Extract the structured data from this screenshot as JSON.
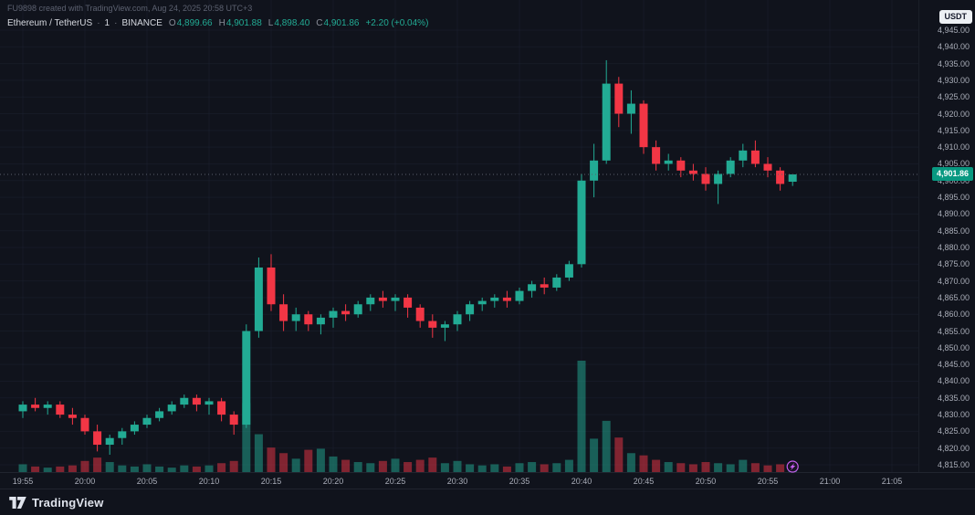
{
  "header": {
    "attribution": "FU9898 created with TradingView.com, Aug 24, 2025 20:58 UTC+3",
    "symbol": "Ethereum / TetherUS",
    "separator": "·",
    "interval": "1",
    "exchange": "BINANCE",
    "ohlc": {
      "o_label": "O",
      "o_value": "4,899.66",
      "h_label": "H",
      "h_value": "4,901.88",
      "l_label": "L",
      "l_value": "4,898.40",
      "c_label": "C",
      "c_value": "4,901.86",
      "change": "+2.20 (+0.04%)"
    }
  },
  "price_axis": {
    "currency": "USDT",
    "last_price": "4,901.86"
  },
  "footer": {
    "brand": "TradingView"
  },
  "chart_data": {
    "type": "candlestick",
    "title": "Ethereum / TetherUS · 1 · BINANCE",
    "x_ticks": [
      "19:55",
      "20:00",
      "20:05",
      "20:10",
      "20:15",
      "20:20",
      "20:25",
      "20:30",
      "20:35",
      "20:40",
      "20:45",
      "20:50",
      "20:55",
      "21:00",
      "21:05"
    ],
    "y_axis": {
      "min": 4815,
      "max": 4945,
      "step": 5
    },
    "y_tick_labels": [
      "4,945.00",
      "4,940.00",
      "4,935.00",
      "4,930.00",
      "4,925.00",
      "4,920.00",
      "4,915.00",
      "4,910.00",
      "4,905.00",
      "4,900.00",
      "4,895.00",
      "4,890.00",
      "4,885.00",
      "4,880.00",
      "4,875.00",
      "4,870.00",
      "4,865.00",
      "4,860.00",
      "4,855.00",
      "4,850.00",
      "4,845.00",
      "4,840.00",
      "4,835.00",
      "4,830.00",
      "4,825.00",
      "4,820.00",
      "4,815.00"
    ],
    "candle_fields": [
      "time",
      "open",
      "high",
      "low",
      "close",
      "volume"
    ],
    "candles": [
      [
        "19:55",
        4831,
        4834,
        4829,
        4833,
        7
      ],
      [
        "19:56",
        4833,
        4835,
        4831,
        4832,
        5
      ],
      [
        "19:57",
        4832,
        4834,
        4830,
        4833,
        4
      ],
      [
        "19:58",
        4833,
        4834,
        4829,
        4830,
        5
      ],
      [
        "19:59",
        4830,
        4832,
        4827,
        4829,
        6
      ],
      [
        "20:00",
        4829,
        4830,
        4824,
        4825,
        10
      ],
      [
        "20:01",
        4825,
        4827,
        4819,
        4821,
        13
      ],
      [
        "20:02",
        4821,
        4824,
        4818,
        4823,
        9
      ],
      [
        "20:03",
        4823,
        4826,
        4821,
        4825,
        6
      ],
      [
        "20:04",
        4825,
        4828,
        4824,
        4827,
        5
      ],
      [
        "20:05",
        4827,
        4830,
        4826,
        4829,
        7
      ],
      [
        "20:06",
        4829,
        4832,
        4828,
        4831,
        5
      ],
      [
        "20:07",
        4831,
        4834,
        4830,
        4833,
        4
      ],
      [
        "20:08",
        4833,
        4836,
        4832,
        4835,
        6
      ],
      [
        "20:09",
        4835,
        4836,
        4831,
        4833,
        5
      ],
      [
        "20:10",
        4833,
        4835,
        4830,
        4834,
        6
      ],
      [
        "20:11",
        4834,
        4835,
        4828,
        4830,
        8
      ],
      [
        "20:12",
        4830,
        4831,
        4824,
        4827,
        10
      ],
      [
        "20:13",
        4827,
        4857,
        4826,
        4855,
        62
      ],
      [
        "20:14",
        4855,
        4877,
        4853,
        4874,
        34
      ],
      [
        "20:15",
        4874,
        4878,
        4861,
        4863,
        22
      ],
      [
        "20:16",
        4863,
        4866,
        4855,
        4858,
        17
      ],
      [
        "20:17",
        4858,
        4862,
        4855,
        4860,
        12
      ],
      [
        "20:18",
        4860,
        4861,
        4855,
        4857,
        20
      ],
      [
        "20:19",
        4857,
        4860,
        4854,
        4859,
        21
      ],
      [
        "20:20",
        4859,
        4862,
        4856,
        4861,
        14
      ],
      [
        "20:21",
        4861,
        4863,
        4858,
        4860,
        11
      ],
      [
        "20:22",
        4860,
        4864,
        4859,
        4863,
        9
      ],
      [
        "20:23",
        4863,
        4866,
        4861,
        4865,
        8
      ],
      [
        "20:24",
        4865,
        4867,
        4862,
        4864,
        10
      ],
      [
        "20:25",
        4864,
        4866,
        4861,
        4865,
        12
      ],
      [
        "20:26",
        4865,
        4866,
        4859,
        4862,
        9
      ],
      [
        "20:27",
        4862,
        4863,
        4856,
        4858,
        11
      ],
      [
        "20:28",
        4858,
        4860,
        4853,
        4856,
        13
      ],
      [
        "20:29",
        4856,
        4858,
        4852,
        4857,
        8
      ],
      [
        "20:30",
        4857,
        4861,
        4855,
        4860,
        10
      ],
      [
        "20:31",
        4860,
        4864,
        4858,
        4863,
        7
      ],
      [
        "20:32",
        4863,
        4865,
        4861,
        4864,
        6
      ],
      [
        "20:33",
        4864,
        4866,
        4862,
        4865,
        7
      ],
      [
        "20:34",
        4865,
        4867,
        4862,
        4864,
        5
      ],
      [
        "20:35",
        4864,
        4868,
        4863,
        4867,
        8
      ],
      [
        "20:36",
        4867,
        4870,
        4865,
        4869,
        9
      ],
      [
        "20:37",
        4869,
        4871,
        4866,
        4868,
        7
      ],
      [
        "20:38",
        4868,
        4872,
        4867,
        4871,
        8
      ],
      [
        "20:39",
        4871,
        4876,
        4870,
        4875,
        11
      ],
      [
        "20:40",
        4875,
        4902,
        4874,
        4900,
        100
      ],
      [
        "20:41",
        4900,
        4911,
        4895,
        4906,
        30
      ],
      [
        "20:42",
        4906,
        4936,
        4905,
        4929,
        46
      ],
      [
        "20:43",
        4929,
        4931,
        4916,
        4920,
        31
      ],
      [
        "20:44",
        4920,
        4927,
        4914,
        4923,
        17
      ],
      [
        "20:45",
        4923,
        4924,
        4908,
        4910,
        15
      ],
      [
        "20:46",
        4910,
        4912,
        4903,
        4905,
        11
      ],
      [
        "20:47",
        4905,
        4908,
        4903,
        4906,
        9
      ],
      [
        "20:48",
        4906,
        4907,
        4901,
        4903,
        8
      ],
      [
        "20:49",
        4903,
        4905,
        4900,
        4902,
        7
      ],
      [
        "20:50",
        4902,
        4904,
        4897,
        4899,
        9
      ],
      [
        "20:51",
        4899,
        4903,
        4893,
        4902,
        8
      ],
      [
        "20:52",
        4902,
        4907,
        4901,
        4906,
        7
      ],
      [
        "20:53",
        4906,
        4911,
        4904,
        4909,
        11
      ],
      [
        "20:54",
        4909,
        4912,
        4904,
        4905,
        8
      ],
      [
        "20:55",
        4905,
        4907,
        4901,
        4903,
        6
      ],
      [
        "20:56",
        4903,
        4904,
        4897,
        4899,
        7
      ],
      [
        "20:57",
        4899.66,
        4901.88,
        4898.4,
        4901.86,
        5
      ]
    ],
    "last_close": 4901.86,
    "marker": {
      "time": "20:57",
      "type": "lightning",
      "color": "#c65ef0"
    },
    "colors": {
      "background": "#10131c",
      "up": "#22ab94",
      "down": "#f23645",
      "grid": "#1b2030",
      "axis_text": "#a9adb8",
      "badge_bg": "#089981",
      "last_price_line": "#5a5f6b",
      "volume_opacity": 0.5
    }
  }
}
